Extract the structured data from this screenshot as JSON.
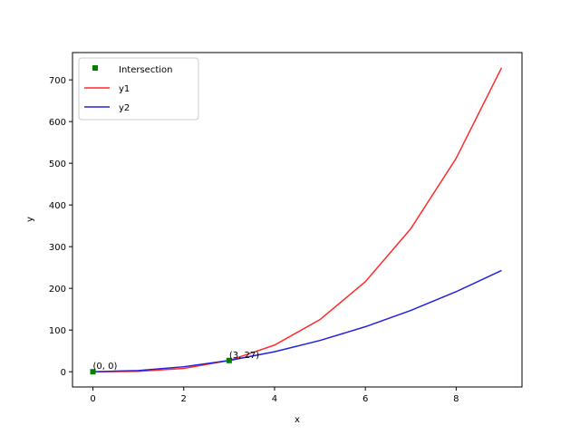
{
  "chart_data": {
    "type": "line",
    "title": "",
    "xlabel": "x",
    "ylabel": "y",
    "xlim": [
      -0.45,
      9.45
    ],
    "ylim": [
      -36.5,
      765.5
    ],
    "xticks": [
      0,
      2,
      4,
      6,
      8
    ],
    "yticks": [
      0,
      100,
      200,
      300,
      400,
      500,
      600,
      700
    ],
    "grid": false,
    "legend_position": "upper-left",
    "x": [
      0,
      1,
      2,
      3,
      4,
      5,
      6,
      7,
      8,
      9
    ],
    "series": [
      {
        "name": "y1",
        "color": "#ff2a2a",
        "values": [
          0,
          1,
          8,
          27,
          64,
          125,
          216,
          343,
          512,
          729
        ]
      },
      {
        "name": "y2",
        "color": "#2222dd",
        "values": [
          0,
          3,
          12,
          27,
          48,
          75,
          108,
          147,
          192,
          243
        ]
      }
    ],
    "intersection": {
      "name": "Intersection",
      "color": "#007f00",
      "points": [
        {
          "x": 0,
          "y": 0,
          "label": "(0, 0)"
        },
        {
          "x": 3,
          "y": 27,
          "label": "(3, 27)"
        }
      ]
    }
  }
}
